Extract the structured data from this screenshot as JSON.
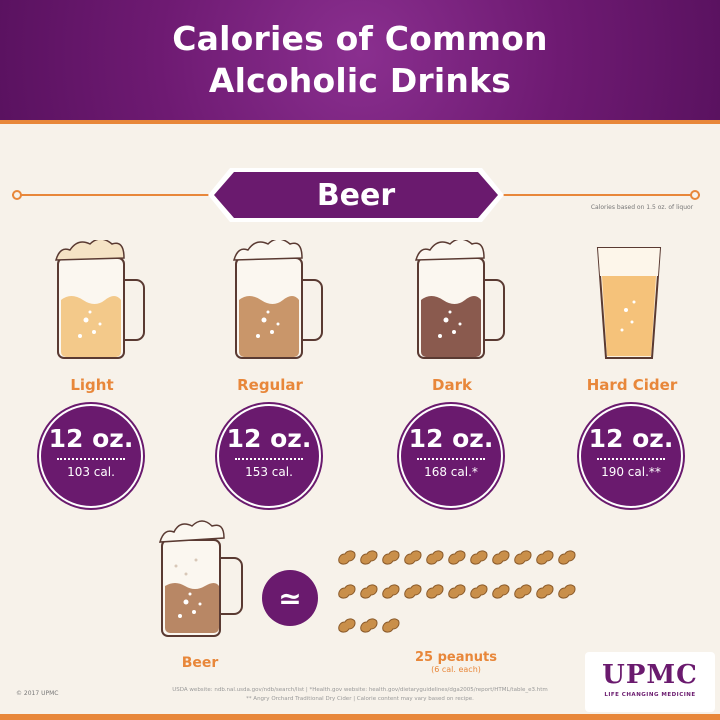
{
  "header": {
    "title_line1": "Calories of Common",
    "title_line2": "Alcoholic Drinks"
  },
  "section": {
    "label": "Beer",
    "note": "Calories based on 1.5 oz. of liquor"
  },
  "colors": {
    "purple": "#6a1a6e",
    "orange": "#e8873a",
    "background": "#f7f2ea"
  },
  "drinks": [
    {
      "name": "Light",
      "oz": "12 oz.",
      "cal": "103 cal.",
      "liquid": "#f3c98a"
    },
    {
      "name": "Regular",
      "oz": "12 oz.",
      "cal": "153 cal.",
      "liquid": "#c9966a"
    },
    {
      "name": "Dark",
      "oz": "12 oz.",
      "cal": "168 cal.*",
      "liquid": "#8a5a4e"
    },
    {
      "name": "Hard Cider",
      "oz": "12 oz.",
      "cal": "190 cal.**",
      "liquid": "#f5c27a"
    }
  ],
  "comparison": {
    "beer_label": "Beer",
    "symbol": "≃",
    "peanuts_label": "25 peanuts",
    "peanuts_sub": "(6 cal. each)",
    "peanut_count": 25
  },
  "footer": {
    "copyright": "© 2017 UPMC",
    "source_line1": "USDA website: ndb.nal.usda.gov/ndb/search/list | *Health.gov website: health.gov/dietaryguidelines/dga2005/report/HTML/table_e3.htm",
    "source_line2": "** Angry Orchard Traditional Dry Cider | Calorie content may vary based on recipe."
  },
  "logo": {
    "name": "UPMC",
    "tagline": "LIFE CHANGING MEDICINE"
  }
}
